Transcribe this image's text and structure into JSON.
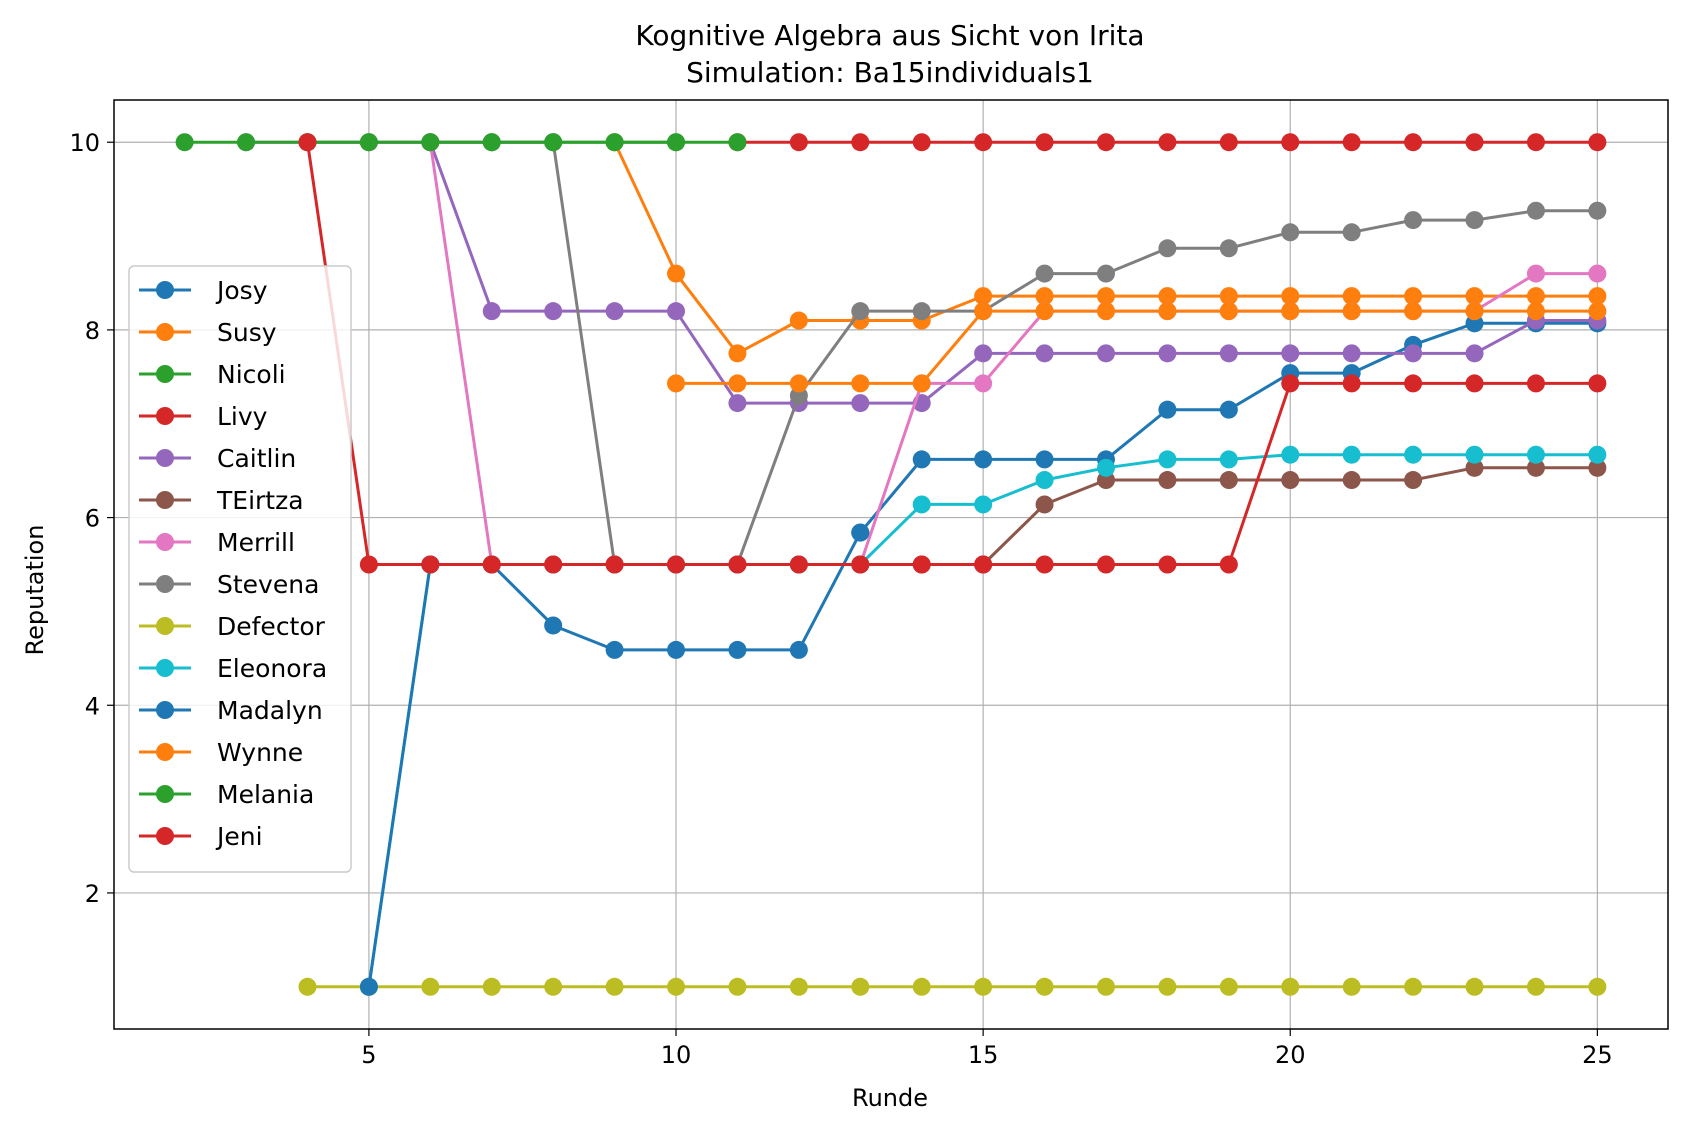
{
  "chart_data": {
    "type": "line",
    "title": "Kognitive Algebra aus Sicht von Irita",
    "subtitle": "Simulation: Ba15individuals1",
    "xlabel": "Runde",
    "ylabel": "Reputation",
    "xlim": [
      0.85,
      26.15
    ],
    "ylim": [
      0.55,
      10.45
    ],
    "xticks": [
      5,
      10,
      15,
      20,
      25
    ],
    "yticks": [
      2,
      4,
      6,
      8,
      10
    ],
    "grid": true,
    "legend_position": "center-left",
    "series": [
      {
        "name": "Josy",
        "color": "#1f77b4",
        "x": [
          13,
          14,
          15,
          16,
          17,
          18,
          19,
          20,
          21,
          22,
          23,
          24,
          25
        ],
        "y": [
          5.84,
          6.62,
          6.62,
          6.62,
          6.62,
          7.15,
          7.15,
          7.54,
          7.54,
          7.84,
          8.07,
          8.07,
          8.07
        ]
      },
      {
        "name": "Susy",
        "color": "#ff7f0e",
        "x": [
          9,
          10,
          11,
          12,
          13,
          14,
          15,
          16,
          17,
          18,
          19,
          20,
          21,
          22,
          23,
          24,
          25
        ],
        "y": [
          10,
          8.6,
          7.75,
          8.1,
          8.1,
          8.1,
          8.36,
          8.36,
          8.36,
          8.36,
          8.36,
          8.36,
          8.36,
          8.36,
          8.36,
          8.36,
          8.36
        ]
      },
      {
        "name": "Nicoli",
        "color": "#2ca02c",
        "x": [
          6,
          7,
          8,
          9,
          10
        ],
        "y": [
          10,
          10,
          10,
          10,
          10
        ]
      },
      {
        "name": "Livy",
        "color": "#d62728",
        "x": [
          11,
          12,
          13,
          14,
          15,
          16,
          17,
          18,
          19,
          20,
          21,
          22,
          23,
          24,
          25
        ],
        "y": [
          10,
          10,
          10,
          10,
          10,
          10,
          10,
          10,
          10,
          10,
          10,
          10,
          10,
          10,
          10
        ]
      },
      {
        "name": "Caitlin",
        "color": "#9467bd",
        "x": [
          3,
          4,
          5,
          6,
          7,
          8,
          9,
          10,
          11,
          12,
          13,
          14,
          15,
          16,
          17,
          18,
          19,
          20,
          21,
          22,
          23,
          24,
          25
        ],
        "y": [
          10,
          10,
          10,
          10,
          8.2,
          8.2,
          8.2,
          8.2,
          7.22,
          7.22,
          7.22,
          7.22,
          7.75,
          7.75,
          7.75,
          7.75,
          7.75,
          7.75,
          7.75,
          7.75,
          7.75,
          8.1,
          8.1
        ]
      },
      {
        "name": "TEirtza",
        "color": "#8c564b",
        "x": [
          13,
          14,
          15,
          16,
          17,
          18,
          19,
          20,
          21,
          22,
          23,
          24,
          25
        ],
        "y": [
          5.5,
          5.5,
          5.5,
          6.14,
          6.4,
          6.4,
          6.4,
          6.4,
          6.4,
          6.4,
          6.53,
          6.53,
          6.53
        ]
      },
      {
        "name": "Merrill",
        "color": "#e377c2",
        "x": [
          6,
          7,
          8,
          9,
          10,
          11,
          12,
          13,
          14,
          15,
          16,
          17,
          18,
          19,
          20,
          21,
          22,
          23,
          24,
          25
        ],
        "y": [
          10,
          5.5,
          5.5,
          5.5,
          5.5,
          5.5,
          5.5,
          5.5,
          7.43,
          7.43,
          8.2,
          8.2,
          8.2,
          8.2,
          8.2,
          8.2,
          8.2,
          8.2,
          8.6,
          8.6
        ]
      },
      {
        "name": "Stevena",
        "color": "#7f7f7f",
        "x": [
          4,
          5,
          6,
          7,
          8,
          9,
          10,
          11,
          12,
          13,
          14,
          15,
          16,
          17,
          18,
          19,
          20,
          21,
          22,
          23,
          24,
          25
        ],
        "y": [
          10,
          10,
          10,
          10,
          10,
          5.5,
          5.5,
          5.5,
          7.3,
          8.2,
          8.2,
          8.2,
          8.6,
          8.6,
          8.87,
          8.87,
          9.04,
          9.04,
          9.17,
          9.17,
          9.27,
          9.27
        ]
      },
      {
        "name": "Defector",
        "color": "#bcbd22",
        "x": [
          4,
          5,
          6,
          7,
          8,
          9,
          10,
          11,
          12,
          13,
          14,
          15,
          16,
          17,
          18,
          19,
          20,
          21,
          22,
          23,
          24,
          25
        ],
        "y": [
          1,
          1,
          1,
          1,
          1,
          1,
          1,
          1,
          1,
          1,
          1,
          1,
          1,
          1,
          1,
          1,
          1,
          1,
          1,
          1,
          1,
          1
        ]
      },
      {
        "name": "Eleonora",
        "color": "#17becf",
        "x": [
          5,
          6,
          7,
          8,
          9,
          10,
          11,
          12,
          13,
          14,
          15,
          16,
          17,
          18,
          19,
          20,
          21,
          22,
          23,
          24,
          25
        ],
        "y": [
          1,
          5.5,
          5.5,
          5.5,
          5.5,
          5.5,
          5.5,
          5.5,
          5.5,
          6.14,
          6.14,
          6.4,
          6.53,
          6.62,
          6.62,
          6.67,
          6.67,
          6.67,
          6.67,
          6.67,
          6.67
        ]
      },
      {
        "name": "Madalyn",
        "color": "#1f77b4",
        "x": [
          5,
          6,
          7,
          8,
          9,
          10,
          11,
          12,
          13
        ],
        "y": [
          1,
          5.5,
          5.5,
          4.85,
          4.59,
          4.59,
          4.59,
          4.59,
          5.84
        ]
      },
      {
        "name": "Wynne",
        "color": "#ff7f0e",
        "x": [
          10,
          11,
          12,
          13,
          14,
          15,
          16,
          17,
          18,
          19,
          20,
          21,
          22,
          23,
          24,
          25
        ],
        "y": [
          7.43,
          7.43,
          7.43,
          7.43,
          7.43,
          8.2,
          8.2,
          8.2,
          8.2,
          8.2,
          8.2,
          8.2,
          8.2,
          8.2,
          8.2,
          8.2
        ]
      },
      {
        "name": "Melania",
        "color": "#2ca02c",
        "x": [
          2,
          3,
          4,
          5,
          6,
          7,
          8,
          9,
          10,
          11
        ],
        "y": [
          10,
          10,
          10,
          10,
          10,
          10,
          10,
          10,
          10,
          10
        ]
      },
      {
        "name": "Jeni",
        "color": "#d62728",
        "x": [
          4,
          5,
          6,
          7,
          8,
          9,
          10,
          11,
          12,
          13,
          14,
          15,
          16,
          17,
          18,
          19,
          20,
          21,
          22,
          23,
          24,
          25
        ],
        "y": [
          10,
          5.5,
          5.5,
          5.5,
          5.5,
          5.5,
          5.5,
          5.5,
          5.5,
          5.5,
          5.5,
          5.5,
          5.5,
          5.5,
          5.5,
          5.5,
          7.43,
          7.43,
          7.43,
          7.43,
          7.43,
          7.43
        ]
      }
    ]
  }
}
